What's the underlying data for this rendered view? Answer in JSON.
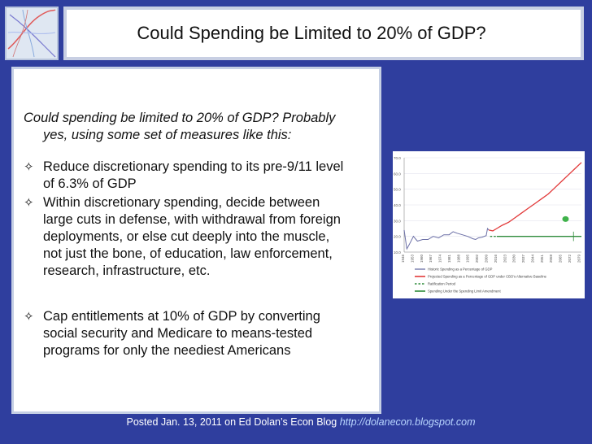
{
  "title": "Could Spending be Limited to 20% of GDP?",
  "intro": {
    "line1": "Could spending be limited to 20% of GDP? Probably",
    "line2": "yes, using some set of measures like this:"
  },
  "bullets": [
    {
      "lines": [
        "Reduce discretionary spending to its pre-9/11 level",
        "of 6.3% of GDP"
      ]
    },
    {
      "lines": [
        "Within discretionary spending, decide between",
        "large cuts in defense, with withdrawal from foreign",
        "deployments, or else cut deeply into the muscle,",
        "not just the bone, of education, law enforcement,",
        "research, infrastructure, etc."
      ]
    },
    {
      "lines": [
        "Cap entitlements at 10% of GDP by converting",
        "social security and Medicare to means-tested",
        "programs for only the neediest Americans"
      ]
    }
  ],
  "footer": {
    "text": "Posted Jan. 13, 2011 on Ed Dolan’s Econ Blog",
    "link": "http://dolanecon.blogspot.com"
  },
  "colors": {
    "background": "#2f3e9e",
    "historic": "#6b6fa6",
    "projected": "#e23a3a",
    "limit": "#2e8b3a"
  },
  "chart_data": {
    "type": "line",
    "yticks": [
      "70.0",
      "60.0",
      "50.0",
      "40.0",
      "30.0",
      "20.0",
      "10.0"
    ],
    "ylim": [
      10,
      70
    ],
    "xticks": [
      "1946",
      "1953",
      "1960",
      "1967",
      "1974",
      "1981",
      "1988",
      "1995",
      "2002",
      "2009",
      "2016",
      "2023",
      "2030",
      "2037",
      "2044",
      "2051",
      "2058",
      "2065",
      "2072",
      "2079"
    ],
    "legend": [
      "Historic Spending as a Percentage of GDP",
      "Projected Spending as a Percentage of GDP under CBO's Alternative Baseline",
      "Ratification Period",
      "Spending Under the Spending Limit Amendment"
    ],
    "series": [
      {
        "name": "Historic Spending as a Percentage of GDP",
        "x": [
          1946,
          1948,
          1950,
          1953,
          1956,
          1960,
          1964,
          1968,
          1972,
          1976,
          1980,
          1983,
          1986,
          1990,
          1994,
          1998,
          2000,
          2002,
          2005,
          2008,
          2009,
          2010
        ],
        "values": [
          24,
          12,
          15,
          20,
          17,
          18,
          18,
          20,
          19,
          21,
          21,
          23,
          22,
          21,
          20,
          18.5,
          18,
          19,
          19.5,
          20.5,
          25,
          24
        ]
      },
      {
        "name": "Projected Spending as a Percentage of GDP under CBO's Alternative Baseline",
        "x": [
          2010,
          2013,
          2016,
          2020,
          2025,
          2030,
          2035,
          2040,
          2045,
          2050,
          2055,
          2060,
          2065,
          2070,
          2075,
          2080
        ],
        "values": [
          24,
          23.5,
          25,
          27,
          29,
          32,
          35,
          38,
          41,
          44,
          47,
          51,
          55,
          59,
          63,
          67
        ]
      },
      {
        "name": "Ratification Period",
        "x": [
          2011,
          2016
        ],
        "values": [
          20,
          20
        ]
      },
      {
        "name": "Spending Under the Spending Limit Amendment",
        "x": [
          2016,
          2080
        ],
        "values": [
          20,
          20
        ]
      }
    ]
  }
}
